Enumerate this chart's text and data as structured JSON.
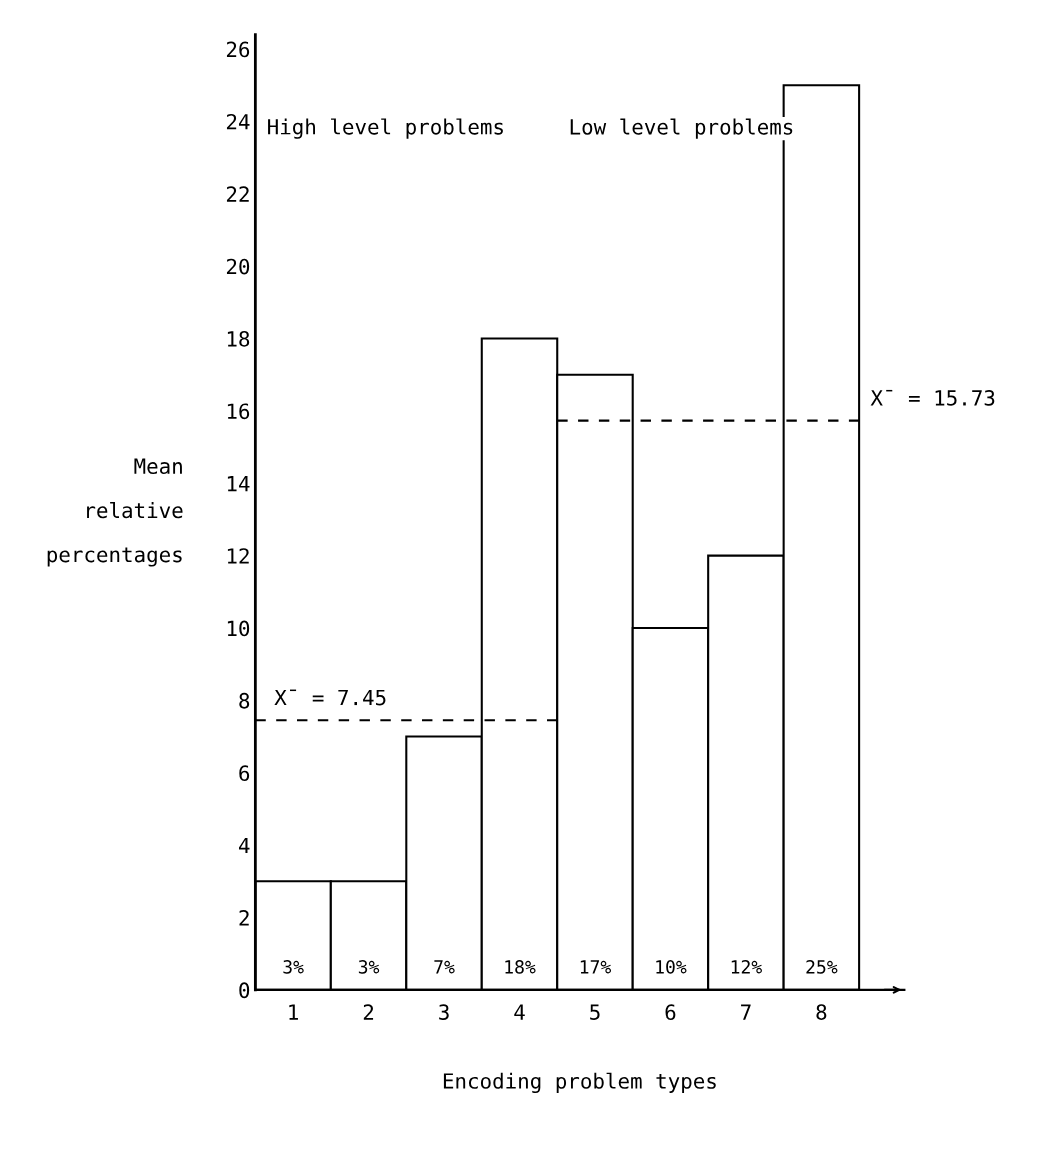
{
  "chart_data": {
    "type": "bar",
    "xlabel": "Encoding problem types",
    "ylabel": "Mean\nrelative\npercentages",
    "categories": [
      "1",
      "2",
      "3",
      "4",
      "5",
      "6",
      "7",
      "8"
    ],
    "values": [
      3,
      3,
      7,
      18,
      17,
      10,
      12,
      25
    ],
    "value_labels": [
      "3%",
      "3%",
      "7%",
      "18%",
      "17%",
      "10%",
      "12%",
      "25%"
    ],
    "color": "#ffffff",
    "ylim": [
      0,
      26.4
    ],
    "yticks": [
      0,
      2,
      4,
      6,
      8,
      10,
      12,
      14,
      16,
      18,
      20,
      22,
      24,
      26
    ],
    "ref_lines": [
      {
        "axis": "y",
        "value": 7.45,
        "label": "X̄ = 7.45",
        "line_style": "dashed",
        "color": "#000000"
      },
      {
        "axis": "y",
        "value": 15.73,
        "label": "X̄ = 15.73",
        "line_style": "dashed",
        "color": "#000000"
      }
    ],
    "annotations": [
      "High level problems",
      "Low level problems"
    ],
    "grid": false
  }
}
